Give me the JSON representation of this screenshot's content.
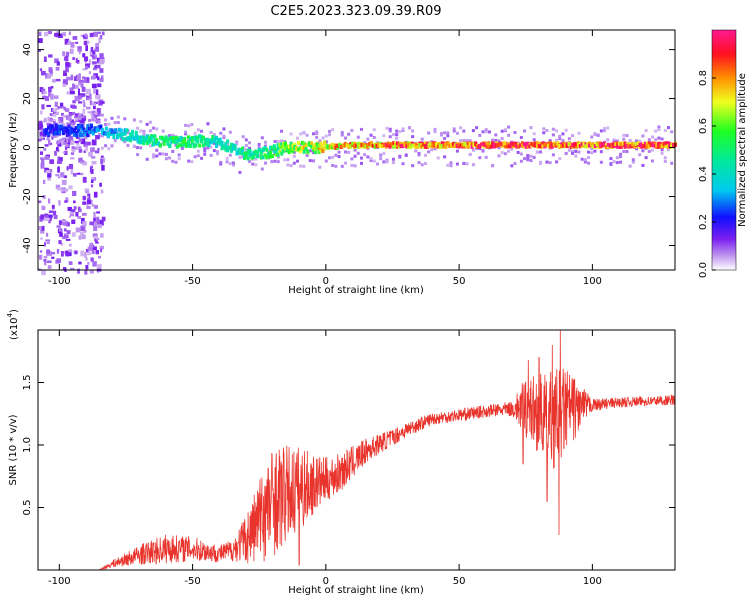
{
  "title": "C2E5.2023.323.09.39.R09",
  "colors": {
    "snr_line": "#e8342c",
    "band_core": "#e8202a",
    "background": "#ffffff"
  },
  "chart_data": [
    {
      "type": "heatmap",
      "xlabel": "Height of straight line (km)",
      "ylabel": "Frequency (Hz)",
      "xlim": [
        -108,
        131
      ],
      "ylim": [
        -50,
        48
      ],
      "xticks": [
        -100,
        -50,
        0,
        50,
        100
      ],
      "yticks": [
        -40,
        -20,
        0,
        20,
        40
      ],
      "colorbar": {
        "label": "Normalized spectral amplitude",
        "range": [
          0,
          1
        ],
        "ticks": [
          "0.0",
          "0.2",
          "0.4",
          "0.6",
          "0.8"
        ]
      },
      "ridge": [
        {
          "x": -100,
          "y": 7,
          "amp": 0.25
        },
        {
          "x": -85,
          "y": 7,
          "amp": 0.3
        },
        {
          "x": -75,
          "y": 5,
          "amp": 0.45
        },
        {
          "x": -65,
          "y": 3,
          "amp": 0.5
        },
        {
          "x": -55,
          "y": 2,
          "amp": 0.55
        },
        {
          "x": -45,
          "y": 3,
          "amp": 0.5
        },
        {
          "x": -38,
          "y": 1,
          "amp": 0.45
        },
        {
          "x": -30,
          "y": -3,
          "amp": 0.5
        },
        {
          "x": -22,
          "y": -2,
          "amp": 0.55
        },
        {
          "x": -15,
          "y": 0,
          "amp": 0.65
        },
        {
          "x": -5,
          "y": 0,
          "amp": 0.75
        },
        {
          "x": 10,
          "y": 1,
          "amp": 0.85
        },
        {
          "x": 30,
          "y": 1,
          "amp": 0.9
        },
        {
          "x": 60,
          "y": 1,
          "amp": 0.92
        },
        {
          "x": 90,
          "y": 1,
          "amp": 0.95
        },
        {
          "x": 131,
          "y": 1,
          "amp": 0.95
        }
      ]
    },
    {
      "type": "line",
      "xlabel": "Height of straight line (km)",
      "ylabel": "SNR (10 * v/v)",
      "scale_label": "(x10",
      "scale_exp": "4",
      "scale_close": ")",
      "xlim": [
        -108,
        131
      ],
      "ylim": [
        0,
        19200
      ],
      "xticks": [
        -100,
        -50,
        0,
        50,
        100
      ],
      "yticks": [
        "0.5",
        "1.0",
        "1.5"
      ],
      "ytick_values": [
        5000,
        10000,
        15000
      ],
      "envelope": {
        "x": [
          -108,
          -85,
          -80,
          -70,
          -60,
          -50,
          -40,
          -35,
          -30,
          -25,
          -20,
          -15,
          -10,
          -5,
          0,
          5,
          10,
          15,
          20,
          25,
          30,
          40,
          50,
          60,
          70,
          75,
          80,
          85,
          90,
          95,
          100,
          110,
          120,
          131
        ],
        "y": [
          0,
          0,
          500,
          1200,
          1700,
          1700,
          1300,
          1600,
          2500,
          4000,
          5500,
          6000,
          6500,
          6800,
          7200,
          7700,
          8600,
          9500,
          10100,
          10600,
          11200,
          12100,
          12400,
          12700,
          12900,
          13000,
          12500,
          12000,
          12800,
          13000,
          13200,
          13400,
          13500,
          13600
        ]
      },
      "noise": {
        "x": [
          -108,
          -85,
          -80,
          -70,
          -60,
          -50,
          -40,
          -35,
          -30,
          -25,
          -20,
          -15,
          -10,
          -5,
          0,
          5,
          10,
          15,
          20,
          25,
          30,
          40,
          50,
          60,
          70,
          75,
          80,
          85,
          90,
          95,
          100,
          110,
          120,
          131
        ],
        "y": [
          0,
          0,
          300,
          800,
          1200,
          1000,
          700,
          900,
          2000,
          3500,
          4500,
          4000,
          3500,
          2500,
          1800,
          1600,
          1300,
          1000,
          800,
          700,
          600,
          500,
          500,
          500,
          600,
          2500,
          3200,
          4000,
          3500,
          2000,
          500,
          400,
          400,
          400
        ]
      },
      "peaks": [
        {
          "x": 88,
          "y": 19200
        },
        {
          "x": 87.5,
          "y": 2800
        },
        {
          "x": 85,
          "y": 18000
        },
        {
          "x": 83,
          "y": 5500
        },
        {
          "x": 80,
          "y": 17000
        },
        {
          "x": 76,
          "y": 16800
        },
        {
          "x": 74,
          "y": 8500
        },
        {
          "x": -19,
          "y": 8200
        },
        {
          "x": -24,
          "y": 7400
        },
        {
          "x": -10,
          "y": 400
        },
        {
          "x": -8,
          "y": 9500
        },
        {
          "x": 6,
          "y": 9000
        }
      ]
    }
  ]
}
